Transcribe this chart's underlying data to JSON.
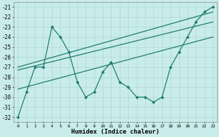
{
  "xlabel": "Humidex (Indice chaleur)",
  "bg_color": "#c8ecea",
  "grid_color": "#afd4d2",
  "line_color": "#1a7a6e",
  "xlim": [
    -0.5,
    23.5
  ],
  "ylim": [
    -32.5,
    -20.5
  ],
  "yticks": [
    -21,
    -22,
    -23,
    -24,
    -25,
    -26,
    -27,
    -28,
    -29,
    -30,
    -31,
    -32
  ],
  "xticks": [
    0,
    1,
    2,
    3,
    4,
    5,
    6,
    7,
    8,
    9,
    10,
    11,
    12,
    13,
    14,
    15,
    16,
    17,
    18,
    19,
    20,
    21,
    22,
    23
  ],
  "series": [
    {
      "x": [
        0,
        1,
        2,
        3,
        4,
        5,
        6,
        7,
        8,
        9,
        10,
        11,
        12,
        13,
        14,
        15,
        16,
        17,
        18,
        19,
        20,
        21,
        22,
        23
      ],
      "y": [
        -32,
        -29.5,
        -27,
        -27,
        -23,
        -24,
        -25.5,
        -28.5,
        -30,
        -29.5,
        -27.5,
        -26.5,
        -28.5,
        -29.0,
        -30,
        -30,
        -30.5,
        -30,
        -27,
        -25.5,
        -24,
        -22.5,
        -21.5,
        -21
      ],
      "marker": "D",
      "markersize": 2.0,
      "linewidth": 0.9
    },
    {
      "x": [
        0,
        23
      ],
      "y": [
        -27.0,
        -21.5
      ],
      "marker": null,
      "markersize": 0,
      "linewidth": 0.9
    },
    {
      "x": [
        0,
        23
      ],
      "y": [
        -27.3,
        -22.5
      ],
      "marker": null,
      "markersize": 0,
      "linewidth": 0.9
    },
    {
      "x": [
        0,
        23
      ],
      "y": [
        -29.2,
        -24.0
      ],
      "marker": null,
      "markersize": 0,
      "linewidth": 0.9
    }
  ]
}
